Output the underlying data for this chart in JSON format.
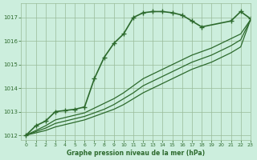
{
  "title": "Graphe pression niveau de la mer (hPa)",
  "bg_color": "#cceedd",
  "grid_color": "#99bb99",
  "line_color": "#2d6a2d",
  "xlim": [
    -0.5,
    23
  ],
  "ylim": [
    1011.8,
    1017.6
  ],
  "yticks": [
    1012,
    1013,
    1014,
    1015,
    1016,
    1017
  ],
  "xticks": [
    0,
    1,
    2,
    3,
    4,
    5,
    6,
    7,
    8,
    9,
    10,
    11,
    12,
    13,
    14,
    15,
    16,
    17,
    18,
    19,
    20,
    21,
    22,
    23
  ],
  "series": [
    {
      "x": [
        0,
        1,
        2,
        3,
        4,
        5,
        6,
        7,
        8,
        9,
        10,
        11,
        12,
        13,
        14,
        15,
        16,
        17,
        18,
        21,
        22,
        23
      ],
      "y": [
        1012.0,
        1012.4,
        1012.6,
        1013.0,
        1013.05,
        1013.1,
        1013.2,
        1014.4,
        1015.3,
        1015.9,
        1016.3,
        1017.0,
        1017.2,
        1017.25,
        1017.25,
        1017.2,
        1017.1,
        1016.85,
        1016.6,
        1016.85,
        1017.25,
        1016.95
      ],
      "marker": "+",
      "markersize": 4,
      "linewidth": 1.2,
      "linestyle": "-"
    },
    {
      "x": [
        0,
        1,
        2,
        3,
        4,
        5,
        6,
        7,
        8,
        9,
        10,
        11,
        12,
        13,
        14,
        15,
        16,
        17,
        18,
        19,
        20,
        21,
        22,
        23
      ],
      "y": [
        1012.0,
        1012.1,
        1012.2,
        1012.35,
        1012.45,
        1012.55,
        1012.65,
        1012.8,
        1012.95,
        1013.1,
        1013.3,
        1013.55,
        1013.8,
        1014.0,
        1014.2,
        1014.4,
        1014.6,
        1014.8,
        1014.95,
        1015.1,
        1015.3,
        1015.5,
        1015.75,
        1016.9
      ],
      "marker": null,
      "markersize": 0,
      "linewidth": 0.9,
      "linestyle": "-"
    },
    {
      "x": [
        0,
        1,
        2,
        3,
        4,
        5,
        6,
        7,
        8,
        9,
        10,
        11,
        12,
        13,
        14,
        15,
        16,
        17,
        18,
        19,
        20,
        21,
        22,
        23
      ],
      "y": [
        1012.0,
        1012.15,
        1012.3,
        1012.5,
        1012.6,
        1012.7,
        1012.8,
        1012.95,
        1013.1,
        1013.3,
        1013.55,
        1013.8,
        1014.1,
        1014.3,
        1014.5,
        1014.7,
        1014.9,
        1015.1,
        1015.25,
        1015.4,
        1015.6,
        1015.8,
        1016.05,
        1016.9
      ],
      "marker": null,
      "markersize": 0,
      "linewidth": 0.9,
      "linestyle": "-"
    },
    {
      "x": [
        0,
        1,
        2,
        3,
        4,
        5,
        6,
        7,
        8,
        9,
        10,
        11,
        12,
        13,
        14,
        15,
        16,
        17,
        18,
        19,
        20,
        21,
        22,
        23
      ],
      "y": [
        1012.0,
        1012.2,
        1012.4,
        1012.65,
        1012.75,
        1012.85,
        1012.95,
        1013.15,
        1013.35,
        1013.55,
        1013.8,
        1014.1,
        1014.4,
        1014.6,
        1014.8,
        1015.0,
        1015.2,
        1015.4,
        1015.55,
        1015.7,
        1015.9,
        1016.1,
        1016.3,
        1016.9
      ],
      "marker": null,
      "markersize": 0,
      "linewidth": 0.9,
      "linestyle": "-"
    }
  ]
}
